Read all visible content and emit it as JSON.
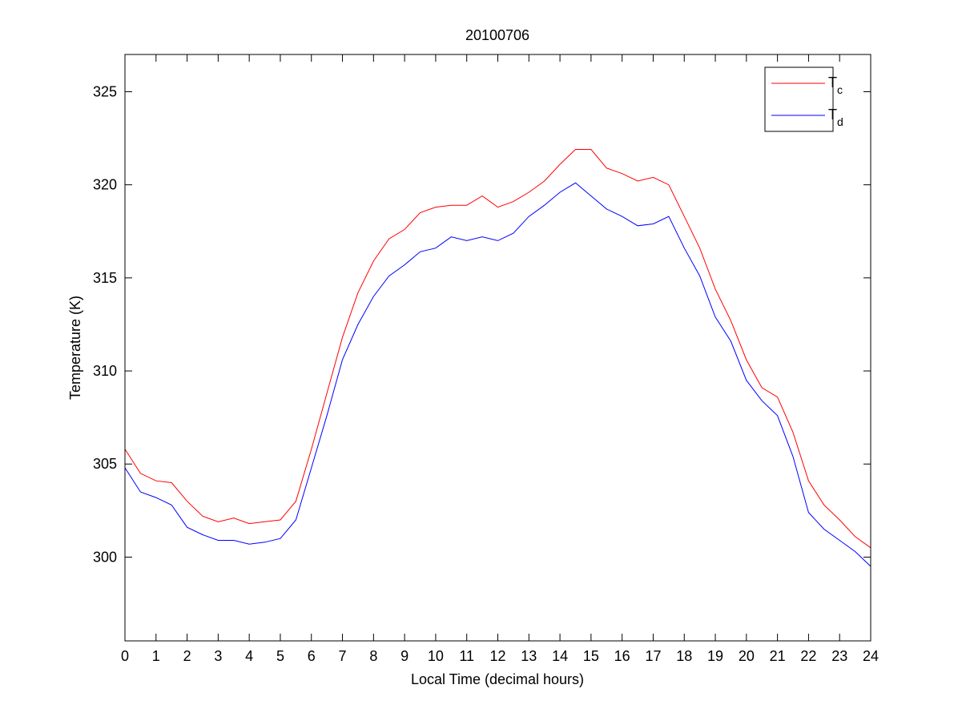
{
  "chart_data": {
    "type": "line",
    "title": "20100706",
    "xlabel": "Local Time (decimal hours)",
    "ylabel": "Temperature (K)",
    "xlim": [
      0,
      24
    ],
    "ylim": [
      295.5,
      327
    ],
    "xticks": [
      0,
      1,
      2,
      3,
      4,
      5,
      6,
      7,
      8,
      9,
      10,
      11,
      12,
      13,
      14,
      15,
      16,
      17,
      18,
      19,
      20,
      21,
      22,
      23,
      24
    ],
    "yticks": [
      300,
      305,
      310,
      315,
      320,
      325
    ],
    "grid": false,
    "legend_position": "top-right",
    "x": [
      0,
      0.5,
      1,
      1.5,
      2,
      2.5,
      3,
      3.5,
      4,
      4.5,
      5,
      5.5,
      6,
      6.5,
      7,
      7.5,
      8,
      8.5,
      9,
      9.5,
      10,
      10.5,
      11,
      11.5,
      12,
      12.5,
      13,
      13.5,
      14,
      14.5,
      15,
      15.5,
      16,
      16.5,
      17,
      17.5,
      18,
      18.5,
      19,
      19.5,
      20,
      20.5,
      21,
      21.5,
      22,
      22.5,
      23,
      23.5,
      24
    ],
    "series": [
      {
        "name": "T",
        "subscript": "c",
        "color": "#ff0000",
        "values": [
          305.8,
          304.5,
          304.1,
          304.0,
          303.0,
          302.2,
          301.9,
          302.1,
          301.8,
          301.9,
          302.0,
          303.0,
          305.8,
          308.8,
          311.8,
          314.2,
          315.9,
          317.1,
          317.6,
          318.5,
          318.8,
          318.9,
          318.9,
          319.4,
          318.8,
          319.1,
          319.6,
          320.2,
          321.1,
          321.9,
          321.9,
          320.9,
          320.6,
          320.2,
          320.4,
          320.0,
          318.3,
          316.6,
          314.4,
          312.7,
          310.6,
          309.1,
          308.6,
          306.7,
          304.1,
          302.8,
          302.0,
          301.1,
          300.5
        ]
      },
      {
        "name": "T",
        "subscript": "d",
        "color": "#0000ff",
        "values": [
          304.8,
          303.5,
          303.2,
          302.8,
          301.6,
          301.2,
          300.9,
          300.9,
          300.7,
          300.8,
          301.0,
          302.0,
          304.8,
          307.6,
          310.6,
          312.5,
          314.0,
          315.1,
          315.7,
          316.4,
          316.6,
          317.2,
          317.0,
          317.2,
          317.0,
          317.4,
          318.3,
          318.9,
          319.6,
          320.1,
          319.4,
          318.7,
          318.3,
          317.8,
          317.9,
          318.3,
          316.6,
          315.1,
          312.9,
          311.6,
          309.5,
          308.4,
          307.6,
          305.4,
          302.4,
          301.5,
          300.9,
          300.3,
          299.5
        ]
      }
    ]
  }
}
